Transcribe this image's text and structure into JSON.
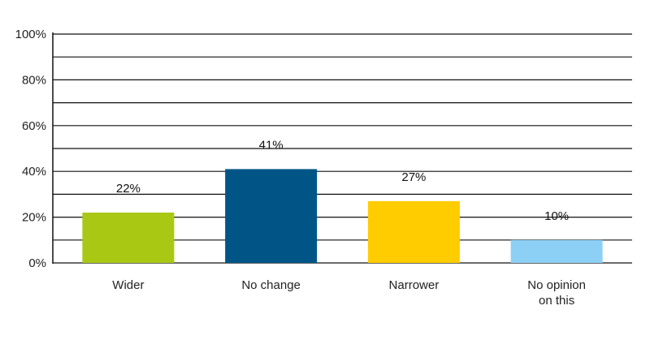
{
  "chart_data": {
    "type": "bar",
    "categories": [
      "Wider",
      "No change",
      "Narrower",
      "No opinion on this"
    ],
    "category_lines": [
      [
        "Wider"
      ],
      [
        "No change"
      ],
      [
        "Narrower"
      ],
      [
        "No opinion",
        "on this"
      ]
    ],
    "values": [
      22,
      41,
      27,
      10
    ],
    "data_labels": [
      "22%",
      "41%",
      "27%",
      "10%"
    ],
    "colors": [
      "#a8c813",
      "#005587",
      "#ffcc00",
      "#8dd0f5"
    ],
    "ylim": [
      0,
      100
    ],
    "y_ticks": [
      0,
      20,
      40,
      60,
      80,
      100
    ],
    "y_tick_labels": [
      "0%",
      "20%",
      "40%",
      "60%",
      "80%",
      "100%"
    ],
    "gridline_step": 10,
    "grid": true,
    "title": "",
    "xlabel": "",
    "ylabel": ""
  }
}
